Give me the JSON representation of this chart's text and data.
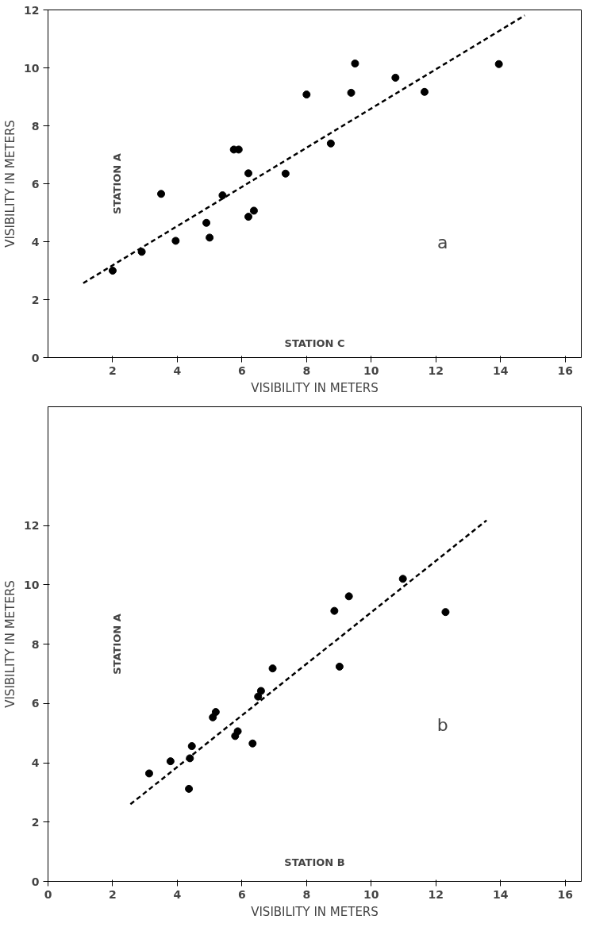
{
  "chart_data": [
    {
      "type": "scatter",
      "xlabel": "VISIBILITY IN METERS",
      "ylabel": "VISIBILITY IN METERS",
      "annotations": [
        "STATION A",
        "STATION C",
        "a"
      ],
      "xlim": [
        0,
        16.5
      ],
      "ylim": [
        0,
        12
      ],
      "xticks": [
        2,
        4,
        6,
        8,
        10,
        12,
        14,
        16
      ],
      "yticks": [
        0,
        2,
        4,
        6,
        8,
        10,
        12
      ],
      "grid": false,
      "series": [
        {
          "marker": "circle",
          "color": "#000000",
          "x": [
            2.0,
            2.9,
            3.5,
            3.95,
            4.9,
            5.0,
            5.4,
            5.75,
            5.9,
            6.2,
            6.2,
            6.37,
            7.35,
            8.0,
            8.75,
            9.38,
            9.5,
            10.75,
            11.65,
            13.95
          ],
          "values": [
            3.0,
            3.65,
            5.65,
            4.03,
            4.65,
            4.14,
            5.6,
            7.18,
            7.18,
            6.36,
            4.86,
            5.07,
            6.35,
            9.08,
            7.39,
            9.14,
            10.15,
            9.66,
            9.17,
            10.13
          ]
        },
        {
          "type": "line",
          "line_style": "dashed",
          "color": "#000000",
          "x": [
            1.09,
            14.75
          ],
          "values": [
            2.57,
            11.81
          ]
        }
      ]
    },
    {
      "type": "scatter",
      "xlabel": "VISIBILITY IN METERS",
      "ylabel": "VISIBILITY IN METERS",
      "annotations": [
        "STATION A",
        "STATION B",
        "b"
      ],
      "xlim": [
        0,
        16.5
      ],
      "ylim": [
        0,
        16
      ],
      "xticks": [
        0,
        2,
        4,
        6,
        8,
        10,
        12,
        14,
        16
      ],
      "yticks": [
        0,
        2,
        4,
        6,
        8,
        10,
        12
      ],
      "grid": false,
      "series": [
        {
          "marker": "circle",
          "color": "#000000",
          "x": [
            3.13,
            3.79,
            4.36,
            4.39,
            4.45,
            5.1,
            5.19,
            5.79,
            5.87,
            6.33,
            6.5,
            6.59,
            6.95,
            8.86,
            9.02,
            9.31,
            10.98,
            12.3
          ],
          "values": [
            3.64,
            4.05,
            3.12,
            4.15,
            4.56,
            5.53,
            5.71,
            4.9,
            5.06,
            4.65,
            6.23,
            6.42,
            7.18,
            9.12,
            7.24,
            9.61,
            10.2,
            9.08
          ]
        },
        {
          "type": "line",
          "line_style": "dashed",
          "color": "#000000",
          "x": [
            2.55,
            13.57
          ],
          "values": [
            2.6,
            12.17
          ]
        }
      ]
    }
  ]
}
